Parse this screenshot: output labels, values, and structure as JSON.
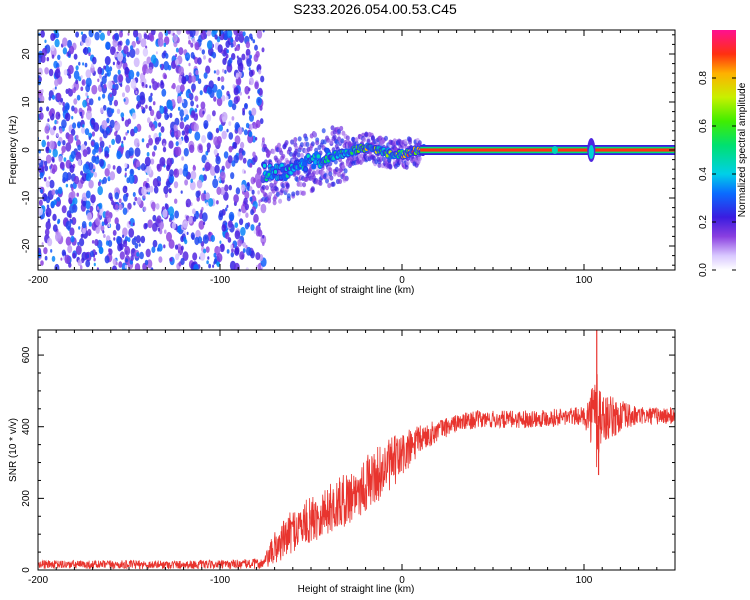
{
  "page": {
    "title": "S233.2026.054.00.53.C45"
  },
  "chart_data": [
    {
      "type": "heatmap",
      "title": "S233.2026.054.00.53.C45",
      "xlabel": "Height of straight line (km)",
      "ylabel": "Frequency (Hz)",
      "xlim": [
        -200,
        150
      ],
      "ylim": [
        -25,
        25
      ],
      "xticks": [
        -200,
        -100,
        0,
        100
      ],
      "xtick_labels": [
        "-200",
        "-100",
        "0",
        "100"
      ],
      "yticks": [
        -20,
        -10,
        0,
        10,
        20
      ],
      "ytick_labels": [
        "-20",
        "-10",
        "0",
        "10",
        "20"
      ],
      "colorbar": {
        "label": "Normalized spectral amplitude",
        "range": [
          0,
          1
        ],
        "ticks": [
          0.0,
          0.2,
          0.4,
          0.6,
          0.8
        ],
        "tick_labels": [
          "0.0",
          "0.2",
          "0.4",
          "0.6",
          "0.8"
        ]
      },
      "noise_region": {
        "x_range": [
          -200,
          -76
        ],
        "description_amplitude": [
          0.05,
          0.35
        ]
      },
      "signal_trace": {
        "x": [
          -76,
          -70,
          -60,
          -50,
          -40,
          -30,
          -20,
          -10,
          0,
          10,
          20,
          60,
          100,
          104,
          110,
          150
        ],
        "frequency": [
          -4.5,
          -5,
          -4,
          -2.5,
          -1.5,
          -0.5,
          0.5,
          -0.5,
          -1,
          0,
          0,
          0,
          0,
          -1,
          0,
          0
        ],
        "amplitude": [
          0.5,
          0.45,
          0.45,
          0.45,
          0.5,
          0.55,
          0.75,
          0.65,
          0.8,
          0.95,
          0.95,
          0.95,
          0.9,
          0.5,
          0.95,
          0.95
        ]
      }
    },
    {
      "type": "line",
      "xlabel": "Height of straight line (km)",
      "ylabel": "SNR (10 * v/v)",
      "xlim": [
        -200,
        150
      ],
      "ylim": [
        0,
        670
      ],
      "xticks": [
        -200,
        -100,
        0,
        100
      ],
      "xtick_labels": [
        "-200",
        "-100",
        "0",
        "100"
      ],
      "yticks": [
        0,
        200,
        400,
        600
      ],
      "ytick_labels": [
        "0",
        "200",
        "400",
        "600"
      ],
      "color": "#e8342e",
      "envelope": {
        "x": [
          -200,
          -150,
          -100,
          -76,
          -70,
          -60,
          -50,
          -40,
          -30,
          -20,
          -10,
          0,
          5,
          10,
          20,
          30,
          40,
          60,
          80,
          100,
          104,
          107,
          110,
          130,
          150
        ],
        "mean": [
          15,
          15,
          15,
          18,
          60,
          110,
          140,
          170,
          200,
          240,
          280,
          320,
          340,
          365,
          390,
          410,
          420,
          420,
          425,
          430,
          430,
          430,
          425,
          430,
          430
        ],
        "spread": [
          12,
          12,
          12,
          15,
          50,
          60,
          65,
          70,
          75,
          80,
          75,
          70,
          55,
          40,
          30,
          25,
          25,
          25,
          25,
          25,
          80,
          180,
          70,
          25,
          25
        ]
      },
      "spikes": [
        {
          "x": 107,
          "y": 670
        },
        {
          "x": 108,
          "y": 265
        }
      ]
    }
  ]
}
